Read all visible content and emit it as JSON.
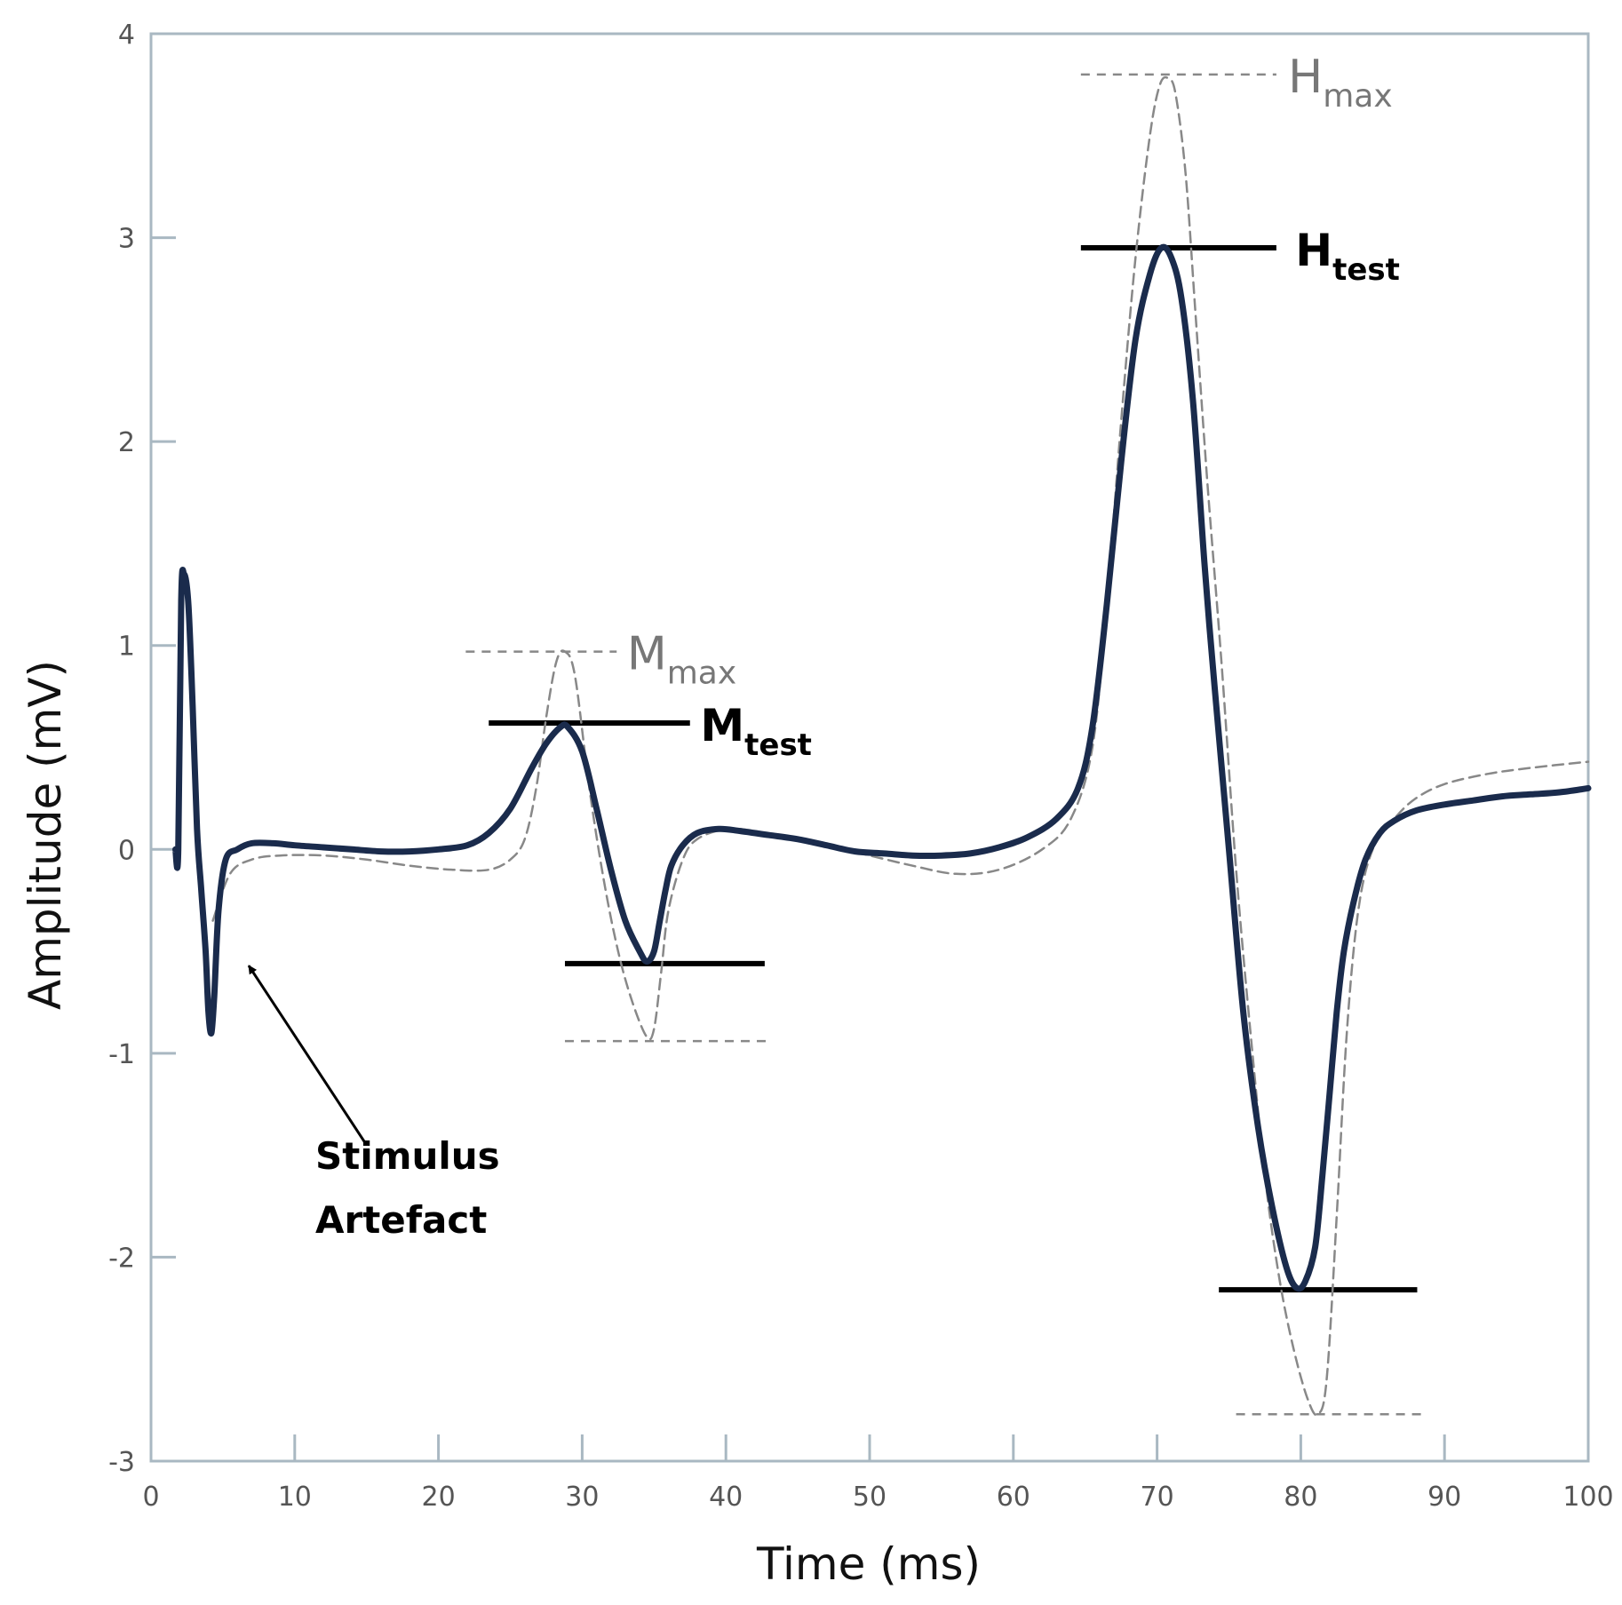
{
  "chart_data": {
    "type": "line",
    "xlabel": "Time (ms)",
    "ylabel": "Amplitude (mV)",
    "xlim": [
      0,
      100
    ],
    "ylim": [
      -3,
      4
    ],
    "xticks": [
      "0",
      "10",
      "20",
      "30",
      "40",
      "50",
      "60",
      "70",
      "80",
      "90",
      "100"
    ],
    "yticks": [
      "4",
      "3",
      "2",
      "1",
      "0",
      "-1",
      "-2",
      "-3"
    ],
    "grid": false,
    "legend": "none",
    "series": [
      {
        "style": "solid",
        "color": "#1a2b4c",
        "x": [
          1.7,
          1.9,
          2.1,
          2.3,
          2.6,
          2.9,
          3.2,
          3.5,
          3.8,
          4.0,
          4.2,
          4.4,
          4.7,
          5.2,
          6.0,
          7.0,
          8.5,
          10.0,
          12.0,
          14.0,
          16.0,
          18.0,
          20.0,
          22.0,
          23.5,
          25.0,
          26.5,
          27.5,
          28.5,
          29.0,
          30.0,
          31.0,
          32.0,
          33.0,
          34.0,
          34.5,
          35.0,
          35.4,
          35.8,
          36.2,
          37.0,
          38.0,
          39.5,
          41.0,
          43.0,
          45.0,
          47.0,
          49.0,
          51.0,
          53.0,
          55.0,
          57.0,
          59.0,
          61.0,
          63.0,
          64.5,
          65.5,
          66.5,
          67.5,
          68.5,
          69.5,
          70.3,
          71.0,
          71.7,
          72.5,
          73.3,
          74.0,
          75.0,
          76.0,
          77.0,
          78.0,
          79.0,
          79.7,
          80.3,
          81.0,
          81.5,
          82.0,
          82.5,
          83.0,
          83.7,
          84.5,
          85.5,
          86.5,
          88.0,
          90.0,
          92.0,
          94.0,
          96.0,
          98.0,
          100.0
        ],
        "y": [
          0.0,
          0.0,
          1.22,
          1.35,
          1.2,
          0.7,
          0.1,
          -0.2,
          -0.5,
          -0.8,
          -0.9,
          -0.72,
          -0.3,
          -0.05,
          0.0,
          0.03,
          0.03,
          0.02,
          0.01,
          0.0,
          -0.01,
          -0.01,
          0.0,
          0.02,
          0.08,
          0.2,
          0.4,
          0.52,
          0.6,
          0.6,
          0.48,
          0.2,
          -0.1,
          -0.35,
          -0.5,
          -0.55,
          -0.5,
          -0.35,
          -0.2,
          -0.08,
          0.02,
          0.08,
          0.1,
          0.09,
          0.07,
          0.05,
          0.02,
          -0.01,
          -0.02,
          -0.03,
          -0.03,
          -0.02,
          0.01,
          0.06,
          0.15,
          0.3,
          0.6,
          1.2,
          1.9,
          2.5,
          2.82,
          2.95,
          2.9,
          2.7,
          2.2,
          1.4,
          0.8,
          0.0,
          -0.8,
          -1.35,
          -1.75,
          -2.05,
          -2.15,
          -2.12,
          -1.95,
          -1.6,
          -1.2,
          -0.8,
          -0.5,
          -0.25,
          -0.05,
          0.08,
          0.14,
          0.19,
          0.22,
          0.24,
          0.26,
          0.27,
          0.28,
          0.3
        ]
      },
      {
        "style": "dashed",
        "color": "#888888",
        "x": [
          4.3,
          5.5,
          7.0,
          9.0,
          12.0,
          15.0,
          18.0,
          21.0,
          23.5,
          25.0,
          26.0,
          26.8,
          27.5,
          28.2,
          28.8,
          29.5,
          30.5,
          31.5,
          32.5,
          33.5,
          34.5,
          35.0,
          35.5,
          36.0,
          37.0,
          38.0,
          40.0,
          42.0,
          44.0,
          47.0,
          50.0,
          53.0,
          56.0,
          59.0,
          62.0,
          64.0,
          65.5,
          66.5,
          67.5,
          68.5,
          69.5,
          70.2,
          70.8,
          71.3,
          72.0,
          72.7,
          73.5,
          74.5,
          75.5,
          76.5,
          77.5,
          78.5,
          79.5,
          80.5,
          81.2,
          81.8,
          82.5,
          83.2,
          84.0,
          85.0,
          86.5,
          88.0,
          90.0,
          93.0,
          96.0,
          100.0
        ],
        "y": [
          -0.35,
          -0.12,
          -0.05,
          -0.03,
          -0.03,
          -0.05,
          -0.08,
          -0.1,
          -0.1,
          -0.05,
          0.05,
          0.3,
          0.65,
          0.92,
          0.97,
          0.85,
          0.3,
          -0.15,
          -0.5,
          -0.75,
          -0.92,
          -0.88,
          -0.6,
          -0.3,
          -0.05,
          0.05,
          0.1,
          0.09,
          0.06,
          0.02,
          -0.03,
          -0.08,
          -0.12,
          -0.1,
          0.0,
          0.15,
          0.5,
          1.2,
          2.1,
          2.9,
          3.5,
          3.75,
          3.78,
          3.7,
          3.3,
          2.6,
          1.8,
          0.9,
          -0.1,
          -0.9,
          -1.6,
          -2.1,
          -2.45,
          -2.7,
          -2.77,
          -2.6,
          -1.8,
          -0.9,
          -0.3,
          0.0,
          0.15,
          0.25,
          0.32,
          0.37,
          0.4,
          0.43
        ]
      }
    ],
    "reference_lines": [
      {
        "style": "solid",
        "y": 0.62,
        "x_from": 23.5,
        "x_to": 37.5
      },
      {
        "style": "solid",
        "y": -0.56,
        "x_from": 28.8,
        "x_to": 42.7
      },
      {
        "style": "solid",
        "y": 2.95,
        "x_from": 64.7,
        "x_to": 78.3
      },
      {
        "style": "solid",
        "y": -2.16,
        "x_from": 74.3,
        "x_to": 88.1
      },
      {
        "style": "dashed",
        "y": 0.97,
        "x_from": 21.9,
        "x_to": 32.4
      },
      {
        "style": "dashed",
        "y": -0.94,
        "x_from": 28.8,
        "x_to": 43.0
      },
      {
        "style": "dashed",
        "y": 3.8,
        "x_from": 64.7,
        "x_to": 78.3
      },
      {
        "style": "dashed",
        "y": -2.77,
        "x_from": 75.5,
        "x_to": 88.5
      }
    ],
    "annotations": [
      {
        "id": "mtest",
        "main": "M",
        "sub": "test",
        "weight": "bold",
        "x": 37.6,
        "y": 0.62
      },
      {
        "id": "mmax",
        "main": "M",
        "sub": "max",
        "weight": "normal",
        "x": 32.5,
        "y": 0.97
      },
      {
        "id": "htest",
        "main": "H",
        "sub": "test",
        "weight": "bold",
        "x": 79.0,
        "y": 2.95
      },
      {
        "id": "hmax",
        "main": "H",
        "sub": "max",
        "weight": "normal",
        "x": 78.5,
        "y": 3.8
      }
    ],
    "stimulus_label": [
      "Stimulus",
      "Artefact"
    ],
    "arrow": {
      "from": [
        15.0,
        -1.45
      ],
      "to": [
        6.8,
        -0.57
      ]
    }
  }
}
